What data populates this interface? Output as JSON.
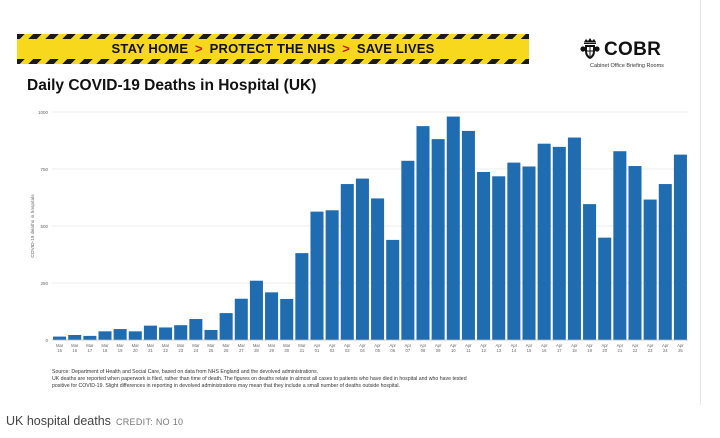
{
  "banner": {
    "part1": "STAY HOME",
    "separator": ">",
    "part2": "PROTECT THE NHS",
    "part3": "SAVE LIVES"
  },
  "logo": {
    "brand": "COBR",
    "subtitle": "Cabinet Office Briefing Rooms"
  },
  "colors": {
    "banner_yellow": "#f8d81c",
    "bar_blue": "#1f6cb0",
    "arrow_red": "#d4141c"
  },
  "chart_data": {
    "type": "bar",
    "title": "Daily COVID-19 Deaths in Hospital (UK)",
    "xlabel": "",
    "ylabel": "COVID-19 deaths in hospitals",
    "ylim": [
      0,
      1000
    ],
    "yticks": [
      0,
      250,
      500,
      750,
      1000
    ],
    "grid": true,
    "categories": [
      "Mar 15",
      "Mar 16",
      "Mar 17",
      "Mar 18",
      "Mar 19",
      "Mar 20",
      "Mar 21",
      "Mar 22",
      "Mar 23",
      "Mar 24",
      "Mar 25",
      "Mar 26",
      "Mar 27",
      "Mar 28",
      "Mar 29",
      "Mar 30",
      "Mar 31",
      "Apr 01",
      "Apr 02",
      "Apr 03",
      "Apr 04",
      "Apr 05",
      "Apr 06",
      "Apr 07",
      "Apr 08",
      "Apr 09",
      "Apr 10",
      "Apr 11",
      "Apr 12",
      "Apr 13",
      "Apr 14",
      "Apr 15",
      "Apr 16",
      "Apr 17",
      "Apr 18",
      "Apr 19",
      "Apr 20",
      "Apr 21",
      "Apr 22",
      "Apr 23",
      "Apr 24",
      "Apr 25"
    ],
    "series": [
      {
        "name": "Daily deaths in hospital",
        "values": [
          15,
          22,
          18,
          38,
          48,
          38,
          63,
          55,
          65,
          92,
          44,
          118,
          181,
          260,
          209,
          180,
          381,
          563,
          569,
          684,
          708,
          621,
          439,
          786,
          938,
          881,
          980,
          917,
          737,
          718,
          778,
          761,
          861,
          847,
          888,
          596,
          449,
          828,
          763,
          616,
          684,
          813
        ]
      }
    ]
  },
  "source": {
    "line1": "Source: Department of Health and Social Care, based on data from NHS England and the devolved administrations.",
    "line2": "UK deaths are reported when paperwork is filed, rather than time of death. The figures on deaths relate in almost all cases to patients who have died in hospital and who have tested",
    "line3": "positive for COVID-19. Slight differences in reporting in devolved administrations may mean that they include a small number of deaths outside hospital."
  },
  "caption": {
    "text": "UK hospital deaths",
    "credit": "CREDIT: NO 10"
  }
}
